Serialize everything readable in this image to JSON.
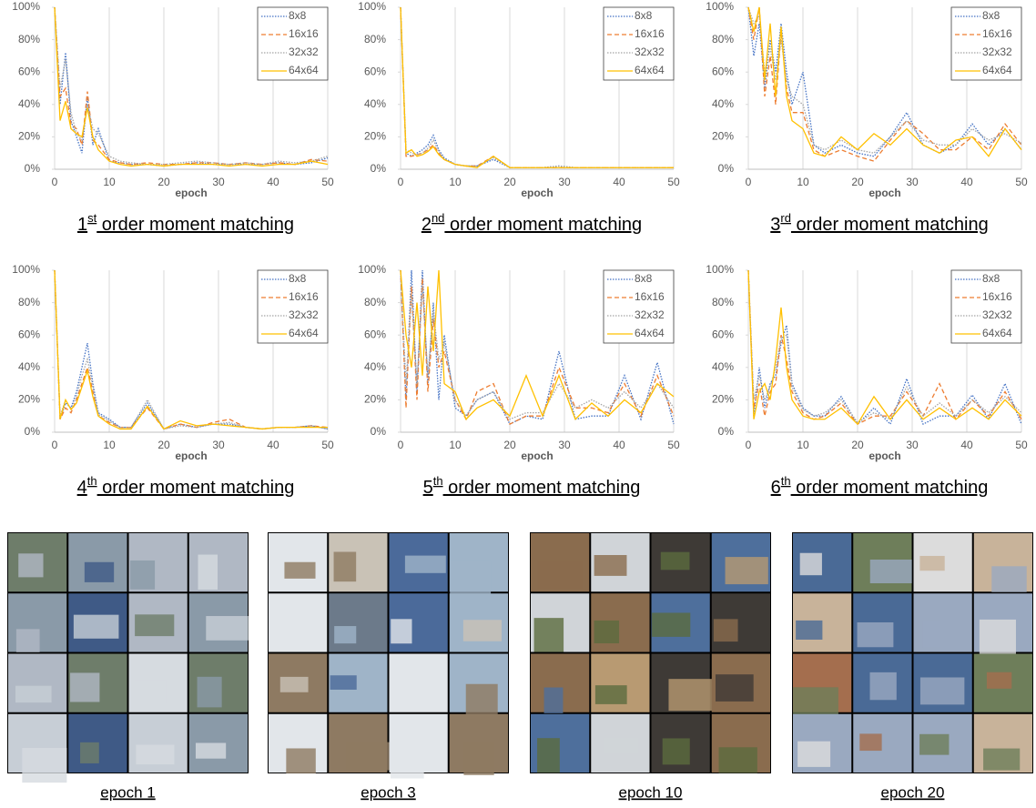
{
  "chart_data": [
    {
      "type": "line",
      "title_number": "1",
      "title_sup": "st",
      "title_rest": " order moment matching",
      "xlabel": "epoch",
      "x": [
        0,
        1,
        2,
        3,
        4,
        5,
        6,
        7,
        8,
        10,
        12,
        14,
        17,
        20,
        23,
        26,
        29,
        32,
        35,
        38,
        41,
        44,
        47,
        50
      ],
      "xlim": [
        0,
        50
      ],
      "xticks": [
        0,
        10,
        20,
        30,
        40,
        50
      ],
      "ylim": [
        0,
        100
      ],
      "yticks": [
        {
          "value": 0,
          "label": "0%"
        },
        {
          "value": 20,
          "label": "20%"
        },
        {
          "value": 40,
          "label": "40%"
        },
        {
          "value": 60,
          "label": "60%"
        },
        {
          "value": 80,
          "label": "80%"
        },
        {
          "value": 100,
          "label": "100%"
        }
      ],
      "grid": "x",
      "legend": "upper right",
      "series": [
        {
          "name": "8x8",
          "color": "#4472c4",
          "dash": "dotted",
          "values": [
            100,
            40,
            72,
            30,
            20,
            10,
            45,
            15,
            25,
            5,
            4,
            3,
            3,
            2,
            3,
            4,
            3,
            3,
            3,
            3,
            4,
            3,
            4,
            7
          ]
        },
        {
          "name": "16x16",
          "color": "#ed7d31",
          "dash": "dashed",
          "values": [
            100,
            45,
            50,
            28,
            25,
            15,
            48,
            18,
            15,
            6,
            4,
            3,
            4,
            3,
            3,
            4,
            4,
            3,
            4,
            3,
            4,
            3,
            6,
            5
          ]
        },
        {
          "name": "32x32",
          "color": "#a5a5a5",
          "dash": "dotted",
          "values": [
            100,
            50,
            68,
            35,
            22,
            18,
            40,
            25,
            22,
            8,
            5,
            4,
            3,
            3,
            4,
            5,
            4,
            3,
            4,
            3,
            5,
            4,
            5,
            8
          ]
        },
        {
          "name": "64x64",
          "color": "#ffc000",
          "dash": "solid",
          "values": [
            100,
            30,
            42,
            25,
            22,
            20,
            38,
            20,
            12,
            5,
            3,
            2,
            3,
            2,
            3,
            3,
            3,
            2,
            3,
            2,
            3,
            3,
            5,
            3
          ]
        }
      ]
    },
    {
      "type": "line",
      "title_number": "2",
      "title_sup": "nd",
      "title_rest": " order moment matching",
      "xlabel": "epoch",
      "x": [
        0,
        1,
        2,
        3,
        4,
        5,
        6,
        7,
        8,
        10,
        12,
        14,
        17,
        20,
        23,
        26,
        29,
        32,
        35,
        38,
        41,
        44,
        47,
        50
      ],
      "xlim": [
        0,
        50
      ],
      "xticks": [
        0,
        10,
        20,
        30,
        40,
        50
      ],
      "ylim": [
        0,
        100
      ],
      "yticks": [
        {
          "value": 0,
          "label": "0%"
        },
        {
          "value": 20,
          "label": "20%"
        },
        {
          "value": 40,
          "label": "40%"
        },
        {
          "value": 60,
          "label": "60%"
        },
        {
          "value": 80,
          "label": "80%"
        },
        {
          "value": 100,
          "label": "100%"
        }
      ],
      "grid": "x",
      "legend": "upper right",
      "series": [
        {
          "name": "8x8",
          "color": "#4472c4",
          "dash": "dotted",
          "values": [
            100,
            10,
            8,
            10,
            12,
            15,
            21,
            12,
            7,
            3,
            2,
            2,
            6,
            1,
            1,
            1,
            2,
            1,
            1,
            1,
            1,
            1,
            1,
            1
          ]
        },
        {
          "name": "16x16",
          "color": "#ed7d31",
          "dash": "dashed",
          "values": [
            100,
            8,
            8,
            9,
            10,
            12,
            15,
            10,
            6,
            3,
            2,
            2,
            8,
            1,
            1,
            1,
            1,
            1,
            1,
            1,
            1,
            1,
            1,
            1
          ]
        },
        {
          "name": "32x32",
          "color": "#a5a5a5",
          "dash": "dotted",
          "values": [
            100,
            12,
            10,
            9,
            10,
            13,
            18,
            11,
            6,
            3,
            2,
            2,
            7,
            1,
            1,
            1,
            2,
            1,
            1,
            1,
            1,
            1,
            1,
            1
          ]
        },
        {
          "name": "64x64",
          "color": "#ffc000",
          "dash": "solid",
          "values": [
            100,
            10,
            12,
            8,
            9,
            11,
            14,
            9,
            6,
            3,
            2,
            1,
            8,
            1,
            1,
            1,
            1,
            1,
            1,
            1,
            1,
            1,
            1,
            1
          ]
        }
      ]
    },
    {
      "type": "line",
      "title_number": "3",
      "title_sup": "rd",
      "title_rest": " order moment matching",
      "xlabel": "epoch",
      "x": [
        0,
        1,
        2,
        3,
        4,
        5,
        6,
        7,
        8,
        10,
        12,
        14,
        17,
        20,
        23,
        26,
        29,
        32,
        35,
        38,
        41,
        44,
        47,
        50
      ],
      "xlim": [
        0,
        50
      ],
      "xticks": [
        0,
        10,
        20,
        30,
        40,
        50
      ],
      "ylim": [
        0,
        100
      ],
      "yticks": [
        {
          "value": 0,
          "label": "0%"
        },
        {
          "value": 20,
          "label": "20%"
        },
        {
          "value": 40,
          "label": "40%"
        },
        {
          "value": 60,
          "label": "60%"
        },
        {
          "value": 80,
          "label": "80%"
        },
        {
          "value": 100,
          "label": "100%"
        }
      ],
      "grid": "x",
      "legend": "upper right",
      "series": [
        {
          "name": "8x8",
          "color": "#4472c4",
          "dash": "dotted",
          "values": [
            100,
            70,
            90,
            50,
            80,
            60,
            90,
            60,
            40,
            60,
            15,
            10,
            15,
            10,
            8,
            20,
            35,
            15,
            10,
            15,
            28,
            15,
            25,
            12
          ]
        },
        {
          "name": "16x16",
          "color": "#ed7d31",
          "dash": "dashed",
          "values": [
            100,
            80,
            100,
            45,
            70,
            40,
            85,
            50,
            35,
            35,
            12,
            8,
            12,
            8,
            5,
            18,
            30,
            22,
            12,
            12,
            20,
            12,
            28,
            15
          ]
        },
        {
          "name": "32x32",
          "color": "#a5a5a5",
          "dash": "dotted",
          "values": [
            100,
            90,
            95,
            60,
            75,
            55,
            80,
            55,
            45,
            40,
            15,
            12,
            18,
            12,
            10,
            20,
            30,
            18,
            15,
            15,
            25,
            18,
            22,
            16
          ]
        },
        {
          "name": "64x64",
          "color": "#ffc000",
          "dash": "solid",
          "values": [
            100,
            85,
            100,
            55,
            90,
            45,
            88,
            45,
            30,
            25,
            10,
            8,
            20,
            12,
            22,
            15,
            25,
            15,
            10,
            18,
            20,
            8,
            25,
            12
          ]
        }
      ]
    },
    {
      "type": "line",
      "title_number": "4",
      "title_sup": "th",
      "title_rest": " order moment matching",
      "xlabel": "epoch",
      "x": [
        0,
        1,
        2,
        3,
        4,
        5,
        6,
        7,
        8,
        10,
        12,
        14,
        17,
        20,
        23,
        26,
        29,
        32,
        35,
        38,
        41,
        44,
        47,
        50
      ],
      "xlim": [
        0,
        50
      ],
      "xticks": [
        0,
        10,
        20,
        30,
        40,
        50
      ],
      "ylim": [
        0,
        100
      ],
      "yticks": [
        {
          "value": 0,
          "label": "0%"
        },
        {
          "value": 20,
          "label": "20%"
        },
        {
          "value": 40,
          "label": "40%"
        },
        {
          "value": 60,
          "label": "60%"
        },
        {
          "value": 80,
          "label": "80%"
        },
        {
          "value": 100,
          "label": "100%"
        }
      ],
      "grid": "x",
      "legend": "upper right",
      "series": [
        {
          "name": "8x8",
          "color": "#4472c4",
          "dash": "dotted",
          "values": [
            100,
            8,
            18,
            15,
            25,
            40,
            55,
            30,
            12,
            8,
            3,
            3,
            18,
            2,
            5,
            3,
            5,
            5,
            3,
            2,
            3,
            3,
            4,
            2
          ]
        },
        {
          "name": "16x16",
          "color": "#ed7d31",
          "dash": "dashed",
          "values": [
            100,
            8,
            15,
            12,
            20,
            30,
            40,
            25,
            10,
            6,
            3,
            3,
            15,
            2,
            5,
            3,
            6,
            8,
            3,
            2,
            3,
            3,
            4,
            3
          ]
        },
        {
          "name": "32x32",
          "color": "#a5a5a5",
          "dash": "dotted",
          "values": [
            100,
            10,
            20,
            14,
            22,
            35,
            45,
            28,
            11,
            7,
            3,
            3,
            20,
            2,
            4,
            3,
            5,
            6,
            3,
            2,
            3,
            3,
            4,
            2
          ]
        },
        {
          "name": "64x64",
          "color": "#ffc000",
          "dash": "solid",
          "values": [
            100,
            8,
            20,
            14,
            18,
            28,
            38,
            22,
            10,
            5,
            2,
            2,
            16,
            2,
            7,
            4,
            5,
            4,
            3,
            2,
            3,
            3,
            3,
            3
          ]
        }
      ]
    },
    {
      "type": "line",
      "title_number": "5",
      "title_sup": "th",
      "title_rest": " order moment matching",
      "xlabel": "epoch",
      "x": [
        0,
        1,
        2,
        3,
        4,
        5,
        6,
        7,
        8,
        10,
        12,
        14,
        17,
        20,
        23,
        26,
        29,
        32,
        35,
        38,
        41,
        44,
        47,
        50
      ],
      "xlim": [
        0,
        50
      ],
      "xticks": [
        0,
        10,
        20,
        30,
        40,
        50
      ],
      "ylim": [
        0,
        100
      ],
      "yticks": [
        {
          "value": 0,
          "label": "0%"
        },
        {
          "value": 20,
          "label": "20%"
        },
        {
          "value": 40,
          "label": "40%"
        },
        {
          "value": 60,
          "label": "60%"
        },
        {
          "value": 80,
          "label": "80%"
        },
        {
          "value": 100,
          "label": "100%"
        }
      ],
      "grid": "x",
      "legend": "upper right",
      "series": [
        {
          "name": "8x8",
          "color": "#4472c4",
          "dash": "dotted",
          "values": [
            100,
            20,
            100,
            25,
            100,
            30,
            80,
            20,
            60,
            15,
            10,
            20,
            25,
            5,
            10,
            8,
            50,
            8,
            10,
            10,
            35,
            8,
            43,
            5
          ]
        },
        {
          "name": "16x16",
          "color": "#ed7d31",
          "dash": "dashed",
          "values": [
            100,
            15,
            90,
            20,
            95,
            25,
            70,
            40,
            50,
            20,
            8,
            25,
            30,
            5,
            10,
            10,
            40,
            15,
            15,
            12,
            30,
            10,
            35,
            10
          ]
        },
        {
          "name": "32x32",
          "color": "#a5a5a5",
          "dash": "dotted",
          "values": [
            100,
            30,
            85,
            30,
            90,
            35,
            75,
            45,
            55,
            20,
            10,
            20,
            25,
            8,
            12,
            12,
            30,
            15,
            20,
            15,
            25,
            15,
            30,
            15
          ]
        },
        {
          "name": "64x64",
          "color": "#ffc000",
          "dash": "solid",
          "values": [
            100,
            60,
            40,
            80,
            35,
            90,
            50,
            100,
            30,
            25,
            8,
            15,
            20,
            10,
            35,
            10,
            35,
            8,
            18,
            10,
            20,
            12,
            30,
            22
          ]
        }
      ]
    },
    {
      "type": "line",
      "title_number": "6",
      "title_sup": "th",
      "title_rest": " order moment matching",
      "xlabel": "epoch",
      "x": [
        0,
        1,
        2,
        3,
        4,
        5,
        6,
        7,
        8,
        10,
        12,
        14,
        17,
        20,
        23,
        26,
        29,
        32,
        35,
        38,
        41,
        44,
        47,
        50
      ],
      "xlim": [
        0,
        50
      ],
      "xticks": [
        0,
        10,
        20,
        30,
        40,
        50
      ],
      "ylim": [
        0,
        100
      ],
      "yticks": [
        {
          "value": 0,
          "label": "0%"
        },
        {
          "value": 20,
          "label": "20%"
        },
        {
          "value": 40,
          "label": "40%"
        },
        {
          "value": 60,
          "label": "60%"
        },
        {
          "value": 80,
          "label": "80%"
        },
        {
          "value": 100,
          "label": "100%"
        }
      ],
      "grid": "x",
      "legend": "upper right",
      "series": [
        {
          "name": "8x8",
          "color": "#4472c4",
          "dash": "dotted",
          "values": [
            100,
            10,
            40,
            15,
            30,
            35,
            55,
            66,
            30,
            15,
            10,
            10,
            22,
            5,
            15,
            5,
            33,
            5,
            10,
            10,
            23,
            8,
            30,
            5
          ]
        },
        {
          "name": "16x16",
          "color": "#ed7d31",
          "dash": "dashed",
          "values": [
            100,
            15,
            30,
            10,
            25,
            30,
            60,
            45,
            25,
            12,
            8,
            10,
            18,
            5,
            10,
            10,
            25,
            10,
            30,
            8,
            20,
            10,
            25,
            8
          ]
        },
        {
          "name": "32x32",
          "color": "#a5a5a5",
          "dash": "dotted",
          "values": [
            100,
            20,
            35,
            20,
            28,
            40,
            58,
            60,
            28,
            14,
            10,
            12,
            20,
            6,
            12,
            8,
            28,
            10,
            18,
            10,
            20,
            12,
            22,
            12
          ]
        },
        {
          "name": "64x64",
          "color": "#ffc000",
          "dash": "solid",
          "values": [
            100,
            8,
            25,
            30,
            20,
            45,
            77,
            40,
            20,
            10,
            8,
            8,
            15,
            5,
            22,
            8,
            20,
            8,
            15,
            8,
            15,
            8,
            20,
            10
          ]
        }
      ]
    }
  ],
  "samples": [
    {
      "caption": "epoch 1"
    },
    {
      "caption": "epoch 3"
    },
    {
      "caption": "epoch 10"
    },
    {
      "caption": "epoch 20"
    }
  ]
}
